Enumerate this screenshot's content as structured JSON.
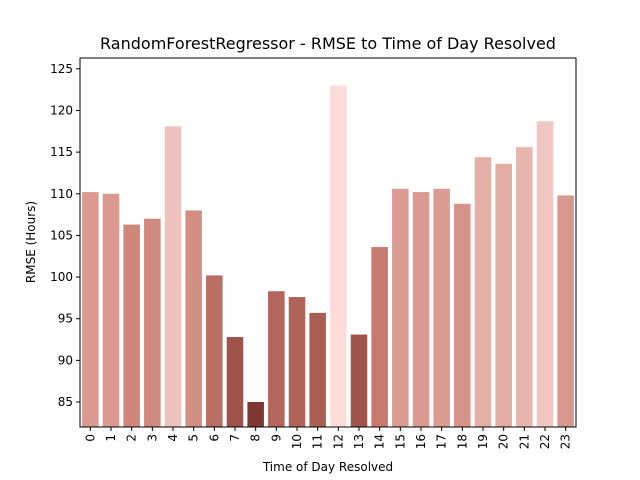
{
  "chart_data": {
    "type": "bar",
    "title": "RandomForestRegressor - RMSE to Time of Day Resolved",
    "xlabel": "Time of Day Resolved",
    "ylabel": "RMSE (Hours)",
    "categories": [
      "0",
      "1",
      "2",
      "3",
      "4",
      "5",
      "6",
      "7",
      "8",
      "9",
      "10",
      "11",
      "12",
      "13",
      "14",
      "15",
      "16",
      "17",
      "18",
      "19",
      "20",
      "21",
      "22",
      "23"
    ],
    "values": [
      110.2,
      110.0,
      106.3,
      107.0,
      118.1,
      108.0,
      100.2,
      92.8,
      85.0,
      98.3,
      97.6,
      95.7,
      123.0,
      93.1,
      103.6,
      110.6,
      110.2,
      110.6,
      108.8,
      114.4,
      113.6,
      115.6,
      118.7,
      109.8
    ],
    "ylim": [
      82,
      126.3
    ],
    "yticks": [
      85,
      90,
      95,
      100,
      105,
      110,
      115,
      120,
      125
    ],
    "palette": {
      "low": "#7f3731",
      "mid": "#c97a6e",
      "high": "#fcdcd8"
    },
    "grid": false,
    "legend": "none"
  }
}
